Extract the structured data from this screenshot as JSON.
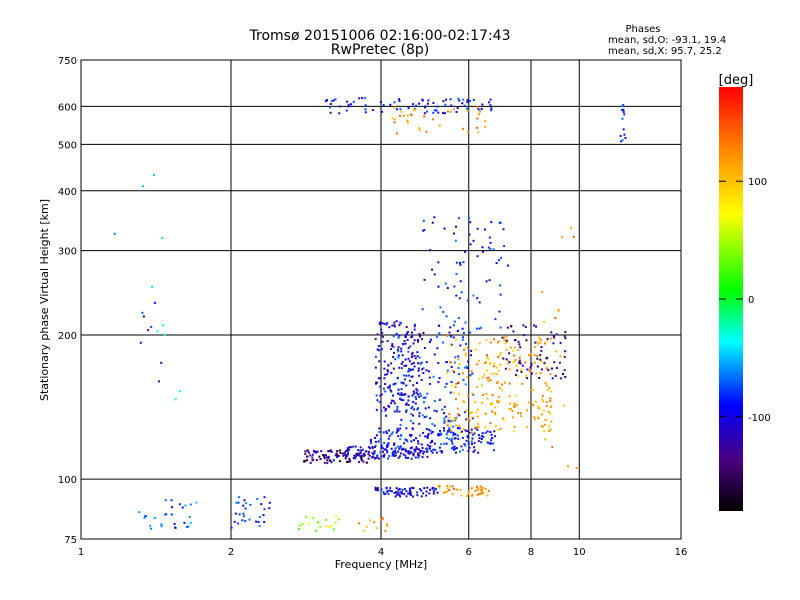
{
  "header": {
    "title_line1": "Tromsø 20151006 02:16:00-02:17:43",
    "title_line2": "RwPretec (8p)"
  },
  "phase_stats": {
    "heading": "Phases",
    "line_o": "mean, sd,O: -93.1, 19.4",
    "line_x": "mean, sd,X:  95.7, 25.2"
  },
  "colorbar": {
    "unit_label": "[deg]",
    "ticks": [
      {
        "value": 100,
        "label": "100"
      },
      {
        "value": 0,
        "label": "0"
      },
      {
        "value": -100,
        "label": "-100"
      }
    ],
    "range": [
      -180,
      180
    ]
  },
  "chart_data": {
    "type": "scatter",
    "title": "Tromsø 20151006 02:16:00-02:17:43",
    "subtitle": "RwPretec (8p)",
    "xlabel": "Frequency [MHz]",
    "ylabel": "Stationary phase Virtual Height [km]",
    "x_scale": "log",
    "y_scale": "log",
    "xlim": [
      1,
      16
    ],
    "ylim": [
      75,
      750
    ],
    "x_ticks": [
      1,
      2,
      4,
      6,
      8,
      10,
      16
    ],
    "y_ticks": [
      75,
      100,
      200,
      300,
      400,
      500,
      600,
      750
    ],
    "grid": true,
    "color_encoding": "phase (deg)",
    "clusters": [
      {
        "x": [
          1.3,
          1.8
        ],
        "y": [
          78,
          92
        ],
        "phase": -80,
        "n": 28
      },
      {
        "x": [
          2.0,
          2.4
        ],
        "y": [
          78,
          92
        ],
        "phase": -100,
        "n": 30
      },
      {
        "x": [
          2.6,
          3.3
        ],
        "y": [
          78,
          84
        ],
        "phase": 40,
        "n": 18
      },
      {
        "x": [
          3.6,
          4.2
        ],
        "y": [
          78,
          84
        ],
        "phase": 110,
        "n": 12
      },
      {
        "x": [
          2.8,
          3.8
        ],
        "y": [
          108,
          115
        ],
        "phase": -140,
        "n": 90
      },
      {
        "x": [
          3.4,
          5.0
        ],
        "y": [
          110,
          117
        ],
        "phase": -110,
        "n": 110
      },
      {
        "x": [
          3.8,
          6.8
        ],
        "y": [
          113,
          128
        ],
        "phase": -100,
        "n": 170
      },
      {
        "x": [
          3.9,
          5.2
        ],
        "y": [
          92,
          96
        ],
        "phase": -110,
        "n": 70
      },
      {
        "x": [
          5.2,
          6.6
        ],
        "y": [
          92,
          97
        ],
        "phase": 110,
        "n": 40
      },
      {
        "x": [
          3.9,
          4.8
        ],
        "y": [
          135,
          215
        ],
        "phase": -110,
        "n": 180
      },
      {
        "x": [
          4.3,
          6.2
        ],
        "y": [
          120,
          210
        ],
        "phase": -95,
        "n": 170
      },
      {
        "x": [
          5.4,
          8.8
        ],
        "y": [
          125,
          200
        ],
        "phase": 105,
        "n": 230
      },
      {
        "x": [
          7.0,
          9.4
        ],
        "y": [
          160,
          210
        ],
        "phase": -140,
        "n": 70
      },
      {
        "x": [
          4.8,
          7.2
        ],
        "y": [
          200,
          360
        ],
        "phase": -100,
        "n": 80
      },
      {
        "x": [
          3.1,
          6.7
        ],
        "y": [
          580,
          625
        ],
        "phase": -100,
        "n": 80
      },
      {
        "x": [
          4.2,
          6.5
        ],
        "y": [
          525,
          600
        ],
        "phase": 110,
        "n": 35
      },
      {
        "x": [
          12.1,
          12.4
        ],
        "y": [
          500,
          610
        ],
        "phase": -90,
        "n": 14
      },
      {
        "x": [
          1.3,
          1.45
        ],
        "y": [
          160,
          250
        ],
        "phase": -100,
        "n": 8
      },
      {
        "x": [
          1.15,
          1.6
        ],
        "y": [
          100,
          460
        ],
        "phase": -40,
        "n": 10
      },
      {
        "x": [
          8.4,
          10.0
        ],
        "y": [
          95,
          420
        ],
        "phase": 110,
        "n": 20
      }
    ]
  }
}
